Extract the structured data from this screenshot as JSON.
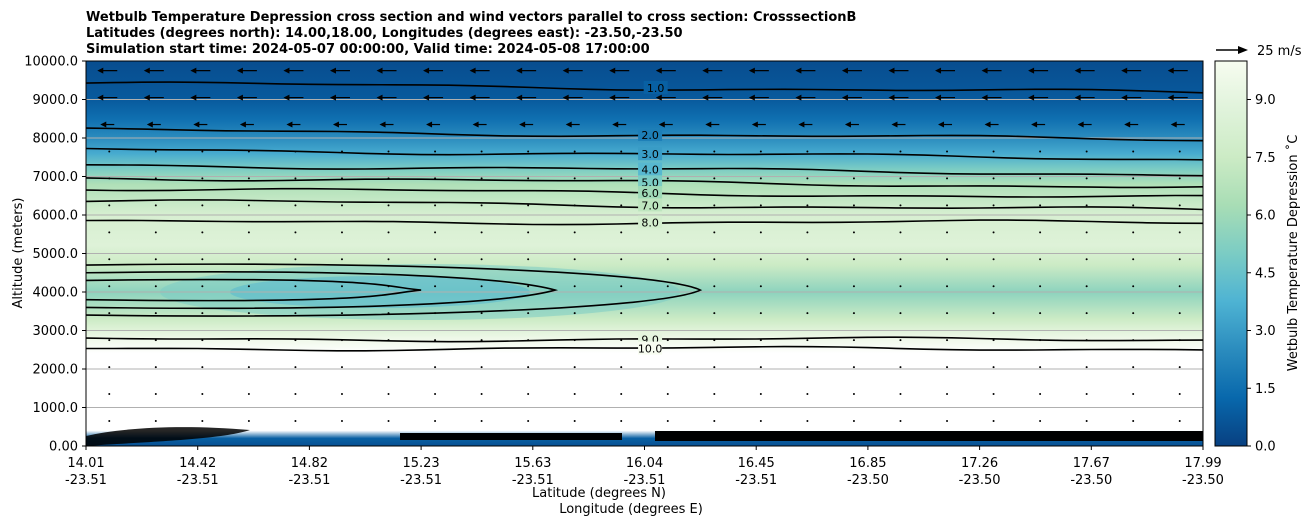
{
  "chart_data": {
    "type": "heatmap",
    "title_lines": [
      "Wetbulb Temperature Depression cross section and wind vectors parallel to cross section: CrosssectionB",
      "Latitudes (degrees north): 14.00,18.00, Longitudes (degrees east): -23.50,-23.50",
      "Simulation start time: 2024-05-07 00:00:00, Valid time: 2024-05-08 17:00:00"
    ],
    "ylabel": "Altitude (meters)",
    "xlabel_lat": "Latitude (degrees N)",
    "xlabel_lon": "Longitude (degrees E)",
    "ylim": [
      0,
      10000
    ],
    "y_ticks": [
      "0.00",
      "1000.0",
      "2000.0",
      "3000.0",
      "4000.0",
      "5000.0",
      "6000.0",
      "7000.0",
      "8000.0",
      "9000.0",
      "10000.0"
    ],
    "y_tick_values": [
      0,
      1000,
      2000,
      3000,
      4000,
      5000,
      6000,
      7000,
      8000,
      9000,
      10000
    ],
    "x_ticks": [
      {
        "lat": "14.01",
        "lon": "-23.51",
        "pos": 0.0
      },
      {
        "lat": "14.42",
        "lon": "-23.51",
        "pos": 0.1
      },
      {
        "lat": "14.82",
        "lon": "-23.51",
        "pos": 0.2
      },
      {
        "lat": "15.23",
        "lon": "-23.51",
        "pos": 0.3
      },
      {
        "lat": "15.63",
        "lon": "-23.51",
        "pos": 0.4
      },
      {
        "lat": "16.04",
        "lon": "-23.51",
        "pos": 0.5
      },
      {
        "lat": "16.45",
        "lon": "-23.51",
        "pos": 0.6
      },
      {
        "lat": "16.85",
        "lon": "-23.50",
        "pos": 0.7
      },
      {
        "lat": "17.26",
        "lon": "-23.50",
        "pos": 0.8
      },
      {
        "lat": "17.67",
        "lon": "-23.50",
        "pos": 0.9
      },
      {
        "lat": "17.99",
        "lon": "-23.50",
        "pos": 1.0
      }
    ],
    "grid": "horizontal",
    "colorbar": {
      "label": "Wetbulb Temperature Depression ˚C",
      "range": [
        0,
        10
      ],
      "ticks": [
        "0.0",
        "1.5",
        "3.0",
        "4.5",
        "6.0",
        "7.5",
        "9.0"
      ],
      "tick_values": [
        0,
        1.5,
        3.0,
        4.5,
        6.0,
        7.5,
        9.0
      ],
      "colormap": "GnBu_r",
      "colors": [
        "#084081",
        "#0868ac",
        "#2b8cbe",
        "#4eb3d3",
        "#7bccc4",
        "#a8ddb5",
        "#ccebc5",
        "#e0f3db",
        "#f7fcf0"
      ]
    },
    "wind_key": {
      "label": "25 m/s",
      "speed": 25
    },
    "layers": [
      {
        "alt": 10000,
        "value": 0.4
      },
      {
        "alt": 9000,
        "value": 0.8
      },
      {
        "alt": 8500,
        "value": 1.5
      },
      {
        "alt": 8000,
        "value": 2.5
      },
      {
        "alt": 7600,
        "value": 3.5
      },
      {
        "alt": 7200,
        "value": 5.0
      },
      {
        "alt": 6800,
        "value": 6.5
      },
      {
        "alt": 6000,
        "value": 8.2
      },
      {
        "alt": 5200,
        "value": 8.6
      },
      {
        "alt": 4700,
        "value": 7.5
      },
      {
        "alt": 4000,
        "value": 5.5
      },
      {
        "alt": 3300,
        "value": 7.5
      },
      {
        "alt": 2800,
        "value": 9.5
      },
      {
        "alt": 2400,
        "value": 10.5
      },
      {
        "alt": 400,
        "value": 10.5
      },
      {
        "alt": 200,
        "value": 1.0
      },
      {
        "alt": 0,
        "value": 0.5
      }
    ],
    "contours": [
      {
        "level": "1.0",
        "label": "1.0",
        "label_x": 0.51,
        "label_alt": 9300
      },
      {
        "level": "2.0",
        "label": "2.0",
        "label_x": 0.505,
        "label_alt": 8080
      },
      {
        "level": "3.0",
        "label": "3.0",
        "label_x": 0.505,
        "label_alt": 7580
      },
      {
        "level": "4.0",
        "label": "4.0",
        "label_x": 0.505,
        "label_alt": 7180
      },
      {
        "level": "5.0",
        "label": "5.0",
        "label_x": 0.505,
        "label_alt": 6850
      },
      {
        "level": "6.0",
        "label": "6.0",
        "label_x": 0.505,
        "label_alt": 6570
      },
      {
        "level": "7.0",
        "label": "7.0",
        "label_x": 0.505,
        "label_alt": 6250
      },
      {
        "level": "8.0",
        "label": "8.0",
        "label_x": 0.505,
        "label_alt": 5810
      },
      {
        "level": "9.0",
        "label": "9.0",
        "label_x": 0.505,
        "label_alt": 2770
      },
      {
        "level": "10.0",
        "label": "10.0",
        "label_x": 0.505,
        "label_alt": 2530
      }
    ]
  }
}
